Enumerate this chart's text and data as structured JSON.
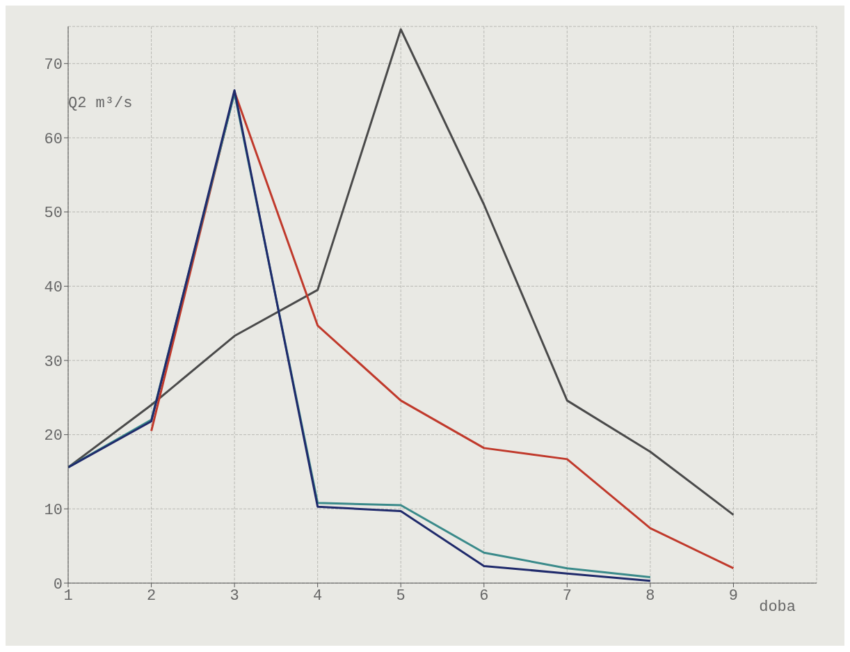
{
  "chart_data": {
    "type": "line",
    "xlabel": "doba",
    "ylabel": "Q2 m³/s",
    "x": [
      1,
      2,
      3,
      4,
      5,
      6,
      7,
      8,
      9
    ],
    "series": [
      {
        "color": "#4a4a4a",
        "values": [
          15.6,
          24,
          33.3,
          39.5,
          74.6,
          51,
          24.6,
          17.7,
          9.2
        ]
      },
      {
        "color": "#c0392b",
        "values": [
          null,
          20.5,
          66.2,
          34.7,
          24.6,
          18.2,
          16.7,
          7.4,
          2
        ]
      },
      {
        "color": "#3a8a8a",
        "values": [
          15.6,
          22,
          66,
          10.8,
          10.5,
          4.1,
          2,
          0.8,
          null
        ]
      },
      {
        "color": "#1f2a6b",
        "values": [
          15.6,
          21.8,
          66.4,
          10.3,
          9.7,
          2.3,
          1.3,
          0.3,
          null
        ]
      }
    ],
    "xlim": [
      1,
      10
    ],
    "xticks": [
      1,
      2,
      3,
      4,
      5,
      6,
      7,
      8,
      9
    ],
    "ylim": [
      0,
      75
    ],
    "yticks": [
      0,
      10,
      20,
      30,
      40,
      50,
      60,
      70
    ],
    "grid": true,
    "marker": "none",
    "line_style": "solid"
  }
}
